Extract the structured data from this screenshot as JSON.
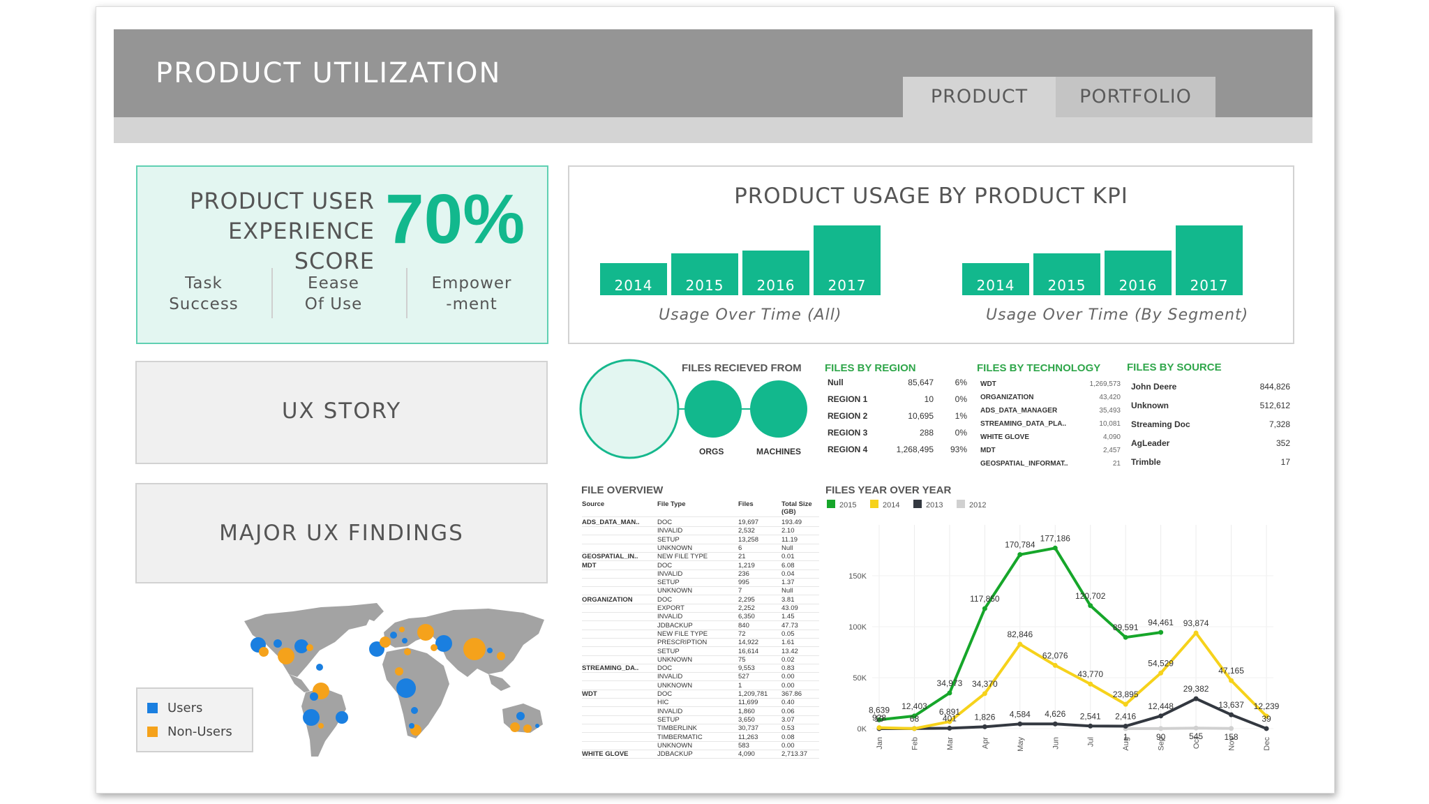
{
  "header": {
    "title": "PRODUCT UTILIZATION",
    "tabs": [
      {
        "label": "PRODUCT",
        "active": true
      },
      {
        "label": "PORTFOLIO",
        "active": false
      }
    ]
  },
  "score": {
    "label_line1": "PRODUCT USER",
    "label_line2": "EXPERIENCE SCORE",
    "value": "70%",
    "metrics": [
      {
        "line1": "Task",
        "line2": "Success"
      },
      {
        "line1": "Eease",
        "line2": "Of Use"
      },
      {
        "line1": "Empower",
        "line2": "-ment"
      }
    ]
  },
  "story": {
    "label": "UX  STORY"
  },
  "findings": {
    "label": "MAJOR UX FINDINGS"
  },
  "map_legend": {
    "users": "Users",
    "non_users": "Non-Users"
  },
  "colors": {
    "accent": "#12b88d",
    "header": "#959595",
    "users": "#1a7fe0",
    "non_users": "#f5a21b",
    "green": "#16a62a",
    "yellow": "#f6d21b",
    "dark": "#333840",
    "light": "#d0d0d0"
  },
  "kpi": {
    "title": "PRODUCT USAGE BY PRODUCT KPI",
    "groups": [
      {
        "caption": "Usage Over Time (All)",
        "bars": [
          "2014",
          "2015",
          "2016",
          "2017"
        ]
      },
      {
        "caption": "Usage Over Time (By Segment)",
        "bars": [
          "2014",
          "2015",
          "2016",
          "2017"
        ]
      }
    ]
  },
  "files_received": {
    "title": "FILES RECIEVED FROM",
    "labels": [
      "ORGS",
      "MACHINES"
    ]
  },
  "files_by_region": {
    "title": "FILES BY REGION",
    "rows": [
      {
        "name": "Null",
        "value": "85,647",
        "pct": "6%"
      },
      {
        "name": "REGION 1",
        "value": "10",
        "pct": "0%"
      },
      {
        "name": "REGION 2",
        "value": "10,695",
        "pct": "1%"
      },
      {
        "name": "REGION 3",
        "value": "288",
        "pct": "0%"
      },
      {
        "name": "REGION 4",
        "value": "1,268,495",
        "pct": "93%"
      }
    ]
  },
  "files_by_technology": {
    "title": "FILES BY TECHNOLOGY",
    "rows": [
      {
        "name": "WDT",
        "value": "1,269,573"
      },
      {
        "name": "ORGANIZATION",
        "value": "43,420"
      },
      {
        "name": "ADS_DATA_MANAGER",
        "value": "35,493"
      },
      {
        "name": "STREAMING_DATA_PLA..",
        "value": "10,081"
      },
      {
        "name": "WHITE GLOVE",
        "value": "4,090"
      },
      {
        "name": "MDT",
        "value": "2,457"
      },
      {
        "name": "GEOSPATIAL_INFORMAT..",
        "value": "21"
      }
    ]
  },
  "files_by_source": {
    "title": "FILES BY SOURCE",
    "rows": [
      {
        "name": "John Deere",
        "value": "844,826"
      },
      {
        "name": "Unknown",
        "value": "512,612"
      },
      {
        "name": "Streaming Doc",
        "value": "7,328"
      },
      {
        "name": "AgLeader",
        "value": "352"
      },
      {
        "name": "Trimble",
        "value": "17"
      }
    ]
  },
  "file_overview": {
    "title": "FILE OVERVIEW",
    "headers": [
      "Source",
      "File Type",
      "Files",
      "Total Size (GB)"
    ],
    "rows": [
      [
        "ADS_DATA_MAN..",
        "DOC",
        "19,697",
        "193.49"
      ],
      [
        "",
        "INVALID",
        "2,532",
        "2.10"
      ],
      [
        "",
        "SETUP",
        "13,258",
        "11.19"
      ],
      [
        "",
        "UNKNOWN",
        "6",
        "Null"
      ],
      [
        "GEOSPATIAL_IN..",
        "NEW FILE TYPE",
        "21",
        "0.01"
      ],
      [
        "MDT",
        "DOC",
        "1,219",
        "6.08"
      ],
      [
        "",
        "INVALID",
        "236",
        "0.04"
      ],
      [
        "",
        "SETUP",
        "995",
        "1.37"
      ],
      [
        "",
        "UNKNOWN",
        "7",
        "Null"
      ],
      [
        "ORGANIZATION",
        "DOC",
        "2,295",
        "3.81"
      ],
      [
        "",
        "EXPORT",
        "2,252",
        "43.09"
      ],
      [
        "",
        "INVALID",
        "6,350",
        "1.45"
      ],
      [
        "",
        "JDBACKUP",
        "840",
        "47.73"
      ],
      [
        "",
        "NEW FILE TYPE",
        "72",
        "0.05"
      ],
      [
        "",
        "PRESCRIPTION",
        "14,922",
        "1.61"
      ],
      [
        "",
        "SETUP",
        "16,614",
        "13.42"
      ],
      [
        "",
        "UNKNOWN",
        "75",
        "0.02"
      ],
      [
        "STREAMING_DA..",
        "DOC",
        "9,553",
        "0.83"
      ],
      [
        "",
        "INVALID",
        "527",
        "0.00"
      ],
      [
        "",
        "UNKNOWN",
        "1",
        "0.00"
      ],
      [
        "WDT",
        "DOC",
        "1,209,781",
        "367.86"
      ],
      [
        "",
        "HIC",
        "11,699",
        "0.40"
      ],
      [
        "",
        "INVALID",
        "1,860",
        "0.06"
      ],
      [
        "",
        "SETUP",
        "3,650",
        "3.07"
      ],
      [
        "",
        "TIMBERLINK",
        "30,737",
        "0.53"
      ],
      [
        "",
        "TIMBERMATIC",
        "11,263",
        "0.08"
      ],
      [
        "",
        "UNKNOWN",
        "583",
        "0.00"
      ],
      [
        "WHITE GLOVE",
        "JDBACKUP",
        "4,090",
        "2,713.37"
      ]
    ]
  },
  "chart_data": {
    "type": "line",
    "title": "FILES YEAR OVER YEAR",
    "categories": [
      "Jan",
      "Feb",
      "Mar",
      "Apr",
      "May",
      "Jun",
      "Jul",
      "Aug",
      "Sep",
      "Oct",
      "Nov",
      "Dec"
    ],
    "ylim": [
      0,
      200000
    ],
    "yticks": [
      "0K",
      "50K",
      "100K",
      "150K"
    ],
    "grid": true,
    "legend_position": "top-left",
    "series": [
      {
        "name": "2015",
        "color": "#16a62a",
        "values": [
          8639,
          12403,
          34973,
          117850,
          170784,
          177186,
          120702,
          89591,
          94461,
          null,
          null,
          null
        ],
        "labels": [
          "8,639",
          "12,403",
          "34,973",
          "117,850",
          "170,784",
          "177,186",
          "120,702",
          "89,591",
          "94,461",
          "",
          "",
          ""
        ]
      },
      {
        "name": "2014",
        "color": "#f6d21b",
        "values": [
          928,
          68,
          6891,
          34370,
          82846,
          62076,
          43770,
          23895,
          54529,
          93874,
          47165,
          12239
        ],
        "labels": [
          "928",
          "68",
          "6,891",
          "34,370",
          "82,846",
          "62,076",
          "43,770",
          "23,895",
          "54,529",
          "93,874",
          "47,165",
          "12,239"
        ]
      },
      {
        "name": "2013",
        "color": "#333840",
        "values": [
          10,
          68,
          401,
          1826,
          4584,
          4626,
          2541,
          2416,
          12448,
          29382,
          13637,
          39
        ],
        "labels": [
          "10",
          "",
          "401",
          "1,826",
          "4,584",
          "4,626",
          "2,541",
          "2,416",
          "12,448",
          "29,382",
          "13,637",
          "39"
        ]
      },
      {
        "name": "2012",
        "color": "#d0d0d0",
        "values": [
          null,
          null,
          null,
          null,
          null,
          null,
          null,
          1,
          90,
          545,
          158,
          null
        ],
        "labels": [
          "",
          "",
          "",
          "",
          "",
          "",
          "",
          "1",
          "90",
          "545",
          "158",
          ""
        ]
      }
    ]
  }
}
